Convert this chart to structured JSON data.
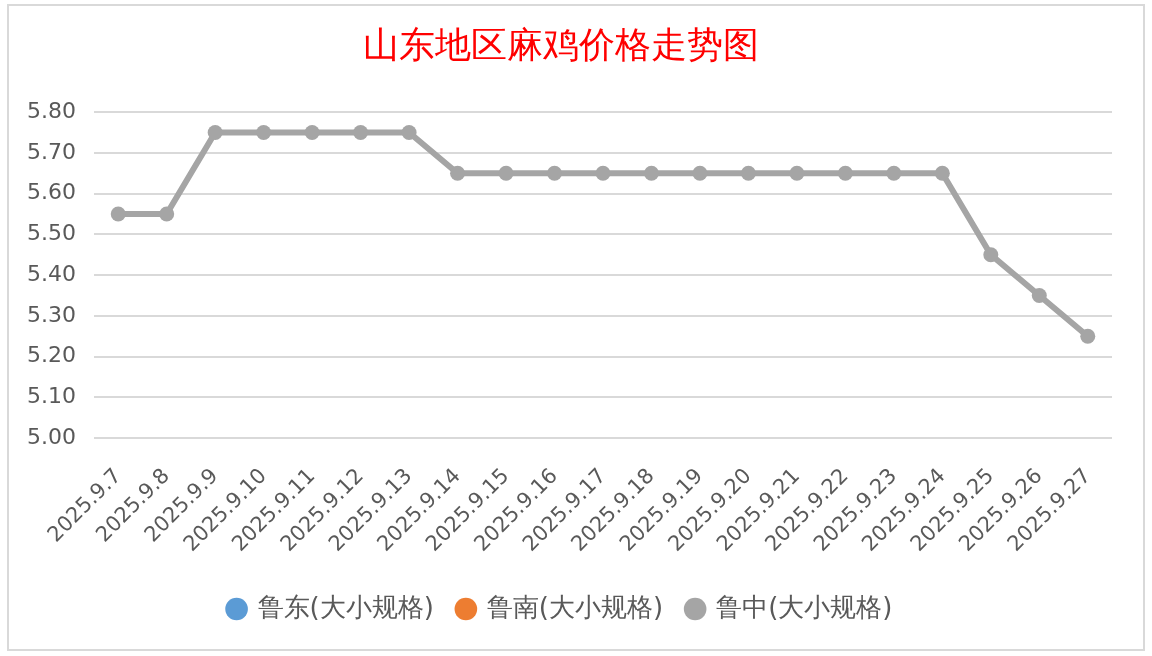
{
  "chart_data": {
    "type": "line",
    "title": "山东地区麻鸡价格走势图",
    "categories": [
      "2025.9.7",
      "2025.9.8",
      "2025.9.9",
      "2025.9.10",
      "2025.9.11",
      "2025.9.12",
      "2025.9.13",
      "2025.9.14",
      "2025.9.15",
      "2025.9.16",
      "2025.9.17",
      "2025.9.18",
      "2025.9.19",
      "2025.9.20",
      "2025.9.21",
      "2025.9.22",
      "2025.9.23",
      "2025.9.24",
      "2025.9.25",
      "2025.9.26",
      "2025.9.27"
    ],
    "series": [
      {
        "name": "鲁东(大小规格)",
        "color": "#5b9bd5",
        "values": [
          null,
          null,
          null,
          null,
          null,
          null,
          null,
          null,
          null,
          null,
          null,
          null,
          null,
          null,
          null,
          null,
          null,
          null,
          null,
          null,
          null
        ]
      },
      {
        "name": "鲁南(大小规格)",
        "color": "#ed7d31",
        "values": [
          null,
          null,
          null,
          null,
          null,
          null,
          null,
          null,
          null,
          null,
          null,
          null,
          null,
          null,
          null,
          null,
          null,
          null,
          null,
          null,
          null
        ]
      },
      {
        "name": "鲁中(大小规格)",
        "color": "#a5a5a5",
        "values": [
          5.55,
          5.55,
          5.75,
          5.75,
          5.75,
          5.75,
          5.75,
          5.65,
          5.65,
          5.65,
          5.65,
          5.65,
          5.65,
          5.65,
          5.65,
          5.65,
          5.65,
          5.65,
          5.45,
          5.35,
          5.25
        ]
      }
    ],
    "ylim": [
      5.0,
      5.8
    ],
    "yticks": [
      {
        "value": 5.0,
        "label": "5.00"
      },
      {
        "value": 5.1,
        "label": "5.10"
      },
      {
        "value": 5.2,
        "label": "5.20"
      },
      {
        "value": 5.3,
        "label": "5.30"
      },
      {
        "value": 5.4,
        "label": "5.40"
      },
      {
        "value": 5.5,
        "label": "5.50"
      },
      {
        "value": 5.6,
        "label": "5.60"
      },
      {
        "value": 5.7,
        "label": "5.70"
      },
      {
        "value": 5.8,
        "label": "5.80"
      }
    ],
    "grid": "y",
    "legend": "bottom",
    "marker": "circle"
  }
}
